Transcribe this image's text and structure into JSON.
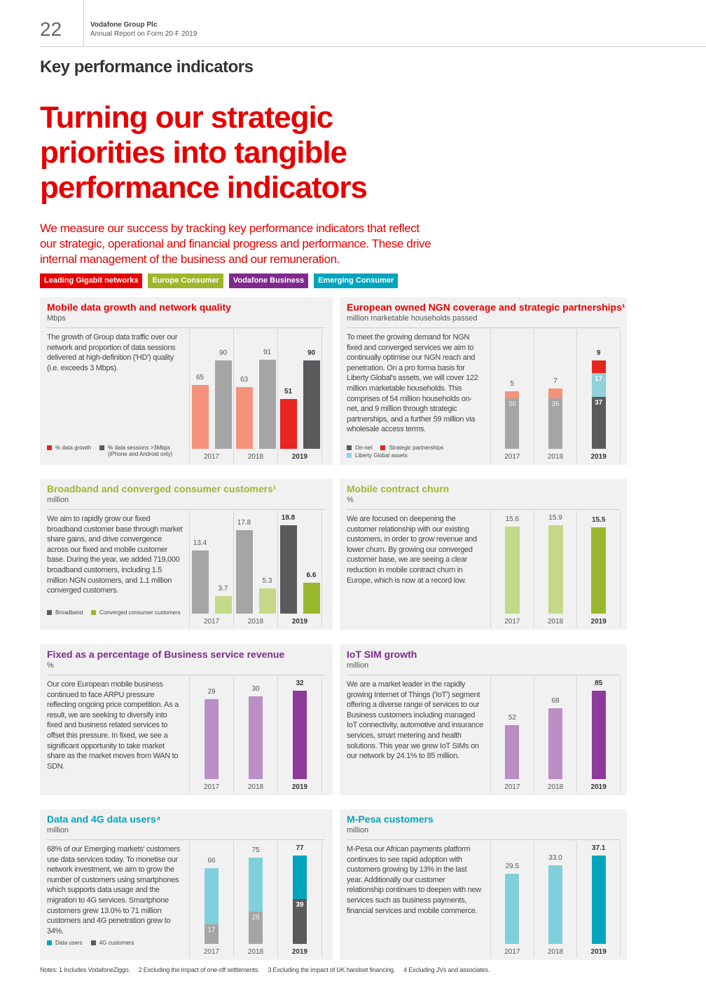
{
  "header": {
    "page_number": "22",
    "company": "Vodafone Group Plc",
    "report": "Annual Report on Form 20-F 2019"
  },
  "section_title": "Key performance indicators",
  "headline": "Turning our strategic priorities into tangible performance indicators",
  "intro": "We measure our success by tracking key performance indicators that reflect our strategic, operational and financial progress and performance. These drive internal management of the business and our remuneration.",
  "tags": [
    {
      "label": "Leading Gigabit networks",
      "color": "#e60000"
    },
    {
      "label": "Europe Consumer",
      "color": "#a0b62a"
    },
    {
      "label": "Vodafone Business",
      "color": "#7e2a8c"
    },
    {
      "label": "Emerging Consumer",
      "color": "#00a5bd"
    }
  ],
  "panels": [
    {
      "title": "Mobile data growth and network quality",
      "title_color": "#e60000",
      "unit": "Mbps",
      "text": "The growth of Group data traffic over our network and proportion of data sessions delivered at high-definition ('HD') quality (i.e. exceeds 3 Mbps).",
      "legend": [
        {
          "label": "% data growth",
          "color": "#e8251e"
        },
        {
          "label": "% data sessions >3Mbps (iPhone and Android only)",
          "color": "#5a5a5c"
        }
      ],
      "chart_data": {
        "type": "bar",
        "max": 90,
        "categories": [
          "2017",
          "2018",
          "2019"
        ],
        "groups": [
          [
            {
              "top": "65",
              "segments": [
                {
                  "v": 65,
                  "c": "#f4937a"
                }
              ]
            },
            {
              "top": "90",
              "segments": [
                {
                  "v": 90,
                  "c": "#a5a5a5"
                }
              ]
            }
          ],
          [
            {
              "top": "63",
              "segments": [
                {
                  "v": 63,
                  "c": "#f4937a"
                }
              ]
            },
            {
              "top": "91",
              "segments": [
                {
                  "v": 91,
                  "c": "#a5a5a5"
                }
              ]
            }
          ],
          [
            {
              "top": "51",
              "segments": [
                {
                  "v": 51,
                  "c": "#e8251e"
                }
              ]
            },
            {
              "top": "90",
              "segments": [
                {
                  "v": 90,
                  "c": "#5a5a5c"
                }
              ]
            }
          ]
        ]
      }
    },
    {
      "title": "European owned NGN coverage and strategic partnerships¹",
      "title_color": "#e60000",
      "unit": "million marketable households passed",
      "text": "To meet the growing demand for NGN fixed and converged services we aim to continually optimise our NGN reach and penetration. On a pro forma basis for Liberty Global's assets, we will cover 122 million marketable households. This comprises of 54 million households on-net, and 9 million through strategic partnerships, and a further 59 million via wholesale access terms.",
      "legend": [
        {
          "label": "On-net",
          "color": "#5a5a5c"
        },
        {
          "label": "Strategic partnerships",
          "color": "#e8251e"
        },
        {
          "label": "Liberty Global assets",
          "color": "#8fd3dc"
        }
      ],
      "chart_data": {
        "type": "stacked-bar",
        "max": 63,
        "categories": [
          "2017",
          "2018",
          "2019"
        ],
        "groups": [
          [
            {
              "top": "5",
              "segments": [
                {
                  "v": 36,
                  "c": "#a5a5a5",
                  "l": "36"
                },
                {
                  "v": 5,
                  "c": "#f4937a"
                }
              ]
            }
          ],
          [
            {
              "top": "7",
              "segments": [
                {
                  "v": 36,
                  "c": "#a5a5a5",
                  "l": "36"
                },
                {
                  "v": 7,
                  "c": "#f4937a"
                }
              ]
            }
          ],
          [
            {
              "top": "9",
              "segments": [
                {
                  "v": 37,
                  "c": "#5a5a5c",
                  "l": "37"
                },
                {
                  "v": 17,
                  "c": "#8fd3dc",
                  "l": "17"
                },
                {
                  "v": 9,
                  "c": "#e8251e"
                }
              ]
            }
          ]
        ]
      }
    },
    {
      "title": "Broadband and converged consumer customers¹",
      "title_color": "#9ab82e",
      "unit": "million",
      "text": "We aim to rapidly grow our fixed broadband customer base through market share gains, and drive convergence across our fixed and mobile customer base. During the year, we added 719,000 broadband customers, including 1.5 million NGN customers, and 1.1 million converged customers.",
      "legend": [
        {
          "label": "Broadband",
          "color": "#5a5a5c"
        },
        {
          "label": "Converged consumer customers",
          "color": "#9ab82e"
        }
      ],
      "chart_data": {
        "type": "bar",
        "max": 18.8,
        "categories": [
          "2017",
          "2018",
          "2019"
        ],
        "groups": [
          [
            {
              "top": "13.4",
              "segments": [
                {
                  "v": 13.4,
                  "c": "#a5a5a5"
                }
              ]
            },
            {
              "top": "3.7",
              "segments": [
                {
                  "v": 3.7,
                  "c": "#c5d88a"
                }
              ]
            }
          ],
          [
            {
              "top": "17.8",
              "segments": [
                {
                  "v": 17.8,
                  "c": "#a5a5a5"
                }
              ]
            },
            {
              "top": "5.3",
              "segments": [
                {
                  "v": 5.3,
                  "c": "#c5d88a"
                }
              ]
            }
          ],
          [
            {
              "top": "18.8",
              "segments": [
                {
                  "v": 18.8,
                  "c": "#5a5a5c"
                }
              ]
            },
            {
              "top": "6.6",
              "segments": [
                {
                  "v": 6.6,
                  "c": "#9ab82e"
                }
              ]
            }
          ]
        ]
      }
    },
    {
      "title": "Mobile contract churn",
      "title_color": "#9ab82e",
      "unit": "%",
      "text": "We are focused on deepening the customer relationship with our existing customers, in order to grow revenue and lower churn. By growing our converged customer base, we are seeing a clear reduction in mobile contract churn in Europe, which is now at a record low.",
      "legend": [],
      "chart_data": {
        "type": "bar",
        "max": 15.9,
        "categories": [
          "2017",
          "2018",
          "2019"
        ],
        "groups": [
          [
            {
              "top": "15.6",
              "segments": [
                {
                  "v": 15.6,
                  "c": "#c5d88a"
                }
              ]
            }
          ],
          [
            {
              "top": "15.9",
              "segments": [
                {
                  "v": 15.9,
                  "c": "#c5d88a"
                }
              ]
            }
          ],
          [
            {
              "top": "15.5",
              "segments": [
                {
                  "v": 15.5,
                  "c": "#9ab82e"
                }
              ]
            }
          ]
        ]
      }
    },
    {
      "title": "Fixed as a percentage of Business service revenue",
      "title_color": "#7e2a8c",
      "unit": "%",
      "text": "Our core European mobile business continued to face ARPU pressure reflecting ongoing price competition. As a result, we are seeking to diversify into fixed and business related services to offset this pressure. In fixed, we see a significant opportunity to take market share as the market moves from WAN to SDN.",
      "legend": [],
      "chart_data": {
        "type": "bar",
        "max": 32,
        "categories": [
          "2017",
          "2018",
          "2019"
        ],
        "groups": [
          [
            {
              "top": "29",
              "segments": [
                {
                  "v": 29,
                  "c": "#bb8ec6"
                }
              ]
            }
          ],
          [
            {
              "top": "30",
              "segments": [
                {
                  "v": 30,
                  "c": "#bb8ec6"
                }
              ]
            }
          ],
          [
            {
              "top": "32",
              "segments": [
                {
                  "v": 32,
                  "c": "#8e3a9a"
                }
              ]
            }
          ]
        ]
      }
    },
    {
      "title": "IoT SIM growth",
      "title_color": "#7e2a8c",
      "unit": "million",
      "text": "We are a market leader in the rapidly growing Internet of Things ('IoT') segment offering a diverse range of services to our Business customers including managed IoT connectivity, automotive and insurance services, smart metering and health solutions. This year we grew IoT SIMs on our network by 24.1% to 85 million.",
      "legend": [],
      "chart_data": {
        "type": "bar",
        "max": 85,
        "categories": [
          "2017",
          "2018",
          "2019"
        ],
        "groups": [
          [
            {
              "top": "52",
              "segments": [
                {
                  "v": 52,
                  "c": "#bb8ec6"
                }
              ]
            }
          ],
          [
            {
              "top": "68",
              "segments": [
                {
                  "v": 68,
                  "c": "#bb8ec6"
                }
              ]
            }
          ],
          [
            {
              "top": "85",
              "segments": [
                {
                  "v": 85,
                  "c": "#8e3a9a"
                }
              ]
            }
          ]
        ]
      }
    },
    {
      "title": "Data and 4G data users⁴",
      "title_color": "#00a5bd",
      "unit": "million",
      "text": "68% of our Emerging markets' customers use data services today. To monetise our network investment, we aim to grow the number of customers using smartphones which supports data usage and the migration to 4G services. Smartphone customers grew 13.0% to 71 million customers and 4G penetration grew to 34%.",
      "legend": [
        {
          "label": "Data users",
          "color": "#00a5bd"
        },
        {
          "label": "4G customers",
          "color": "#5a5a5c"
        }
      ],
      "chart_data": {
        "type": "overlay-bar",
        "max": 77,
        "categories": [
          "2017",
          "2018",
          "2019"
        ],
        "groups": [
          [
            {
              "top": "66",
              "segments": [
                {
                  "v": 17,
                  "c": "#a5a5a5",
                  "l": "17"
                },
                {
                  "v": 49,
                  "c": "#7fd0dc"
                }
              ]
            }
          ],
          [
            {
              "top": "75",
              "segments": [
                {
                  "v": 28,
                  "c": "#a5a5a5",
                  "l": "28"
                },
                {
                  "v": 47,
                  "c": "#7fd0dc"
                }
              ]
            }
          ],
          [
            {
              "top": "77",
              "segments": [
                {
                  "v": 39,
                  "c": "#5a5a5c",
                  "l": "39"
                },
                {
                  "v": 38,
                  "c": "#00a5bd"
                }
              ]
            }
          ]
        ]
      }
    },
    {
      "title": "M-Pesa customers",
      "title_color": "#00a5bd",
      "unit": "million",
      "text": "M-Pesa our African payments platform continues to see rapid adoption with customers growing by 13% in the last year. Additionally our customer relationship continues to deepen with new services such as business payments, financial services and mobile commerce.",
      "legend": [],
      "chart_data": {
        "type": "bar",
        "max": 37.1,
        "categories": [
          "2017",
          "2018",
          "2019"
        ],
        "groups": [
          [
            {
              "top": "29.5",
              "segments": [
                {
                  "v": 29.5,
                  "c": "#7fd0dc"
                }
              ]
            }
          ],
          [
            {
              "top": "33.0",
              "segments": [
                {
                  "v": 33.0,
                  "c": "#7fd0dc"
                }
              ]
            }
          ],
          [
            {
              "top": "37.1",
              "segments": [
                {
                  "v": 37.1,
                  "c": "#00a5bd"
                }
              ]
            }
          ]
        ]
      }
    }
  ],
  "notes": [
    "Notes:  1  Includes VodafoneZiggo.",
    "2  Excluding the impact of one-off settlements.",
    "3  Excluding the impact of UK handset financing.",
    "4  Excluding JVs and associates."
  ]
}
